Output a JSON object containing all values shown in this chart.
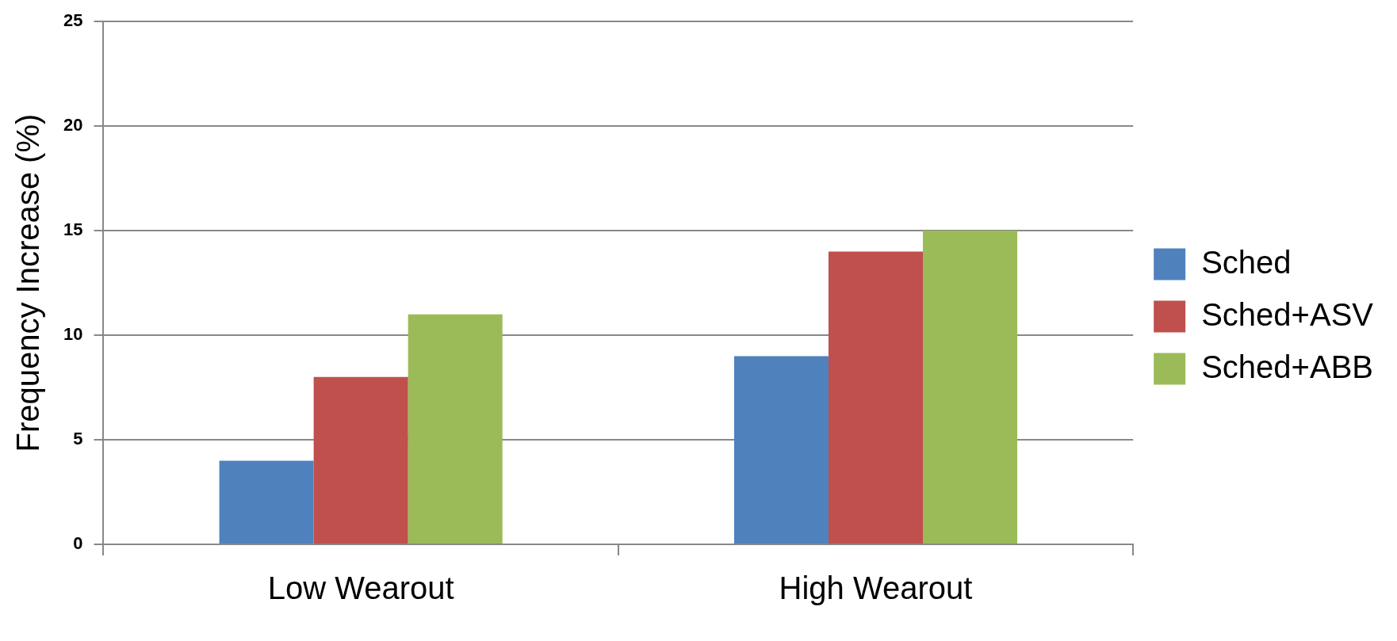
{
  "chart_data": {
    "type": "bar",
    "ylabel": "Frequency Increase (%)",
    "categories": [
      "Low Wearout",
      "High Wearout"
    ],
    "series": [
      {
        "name": "Sched",
        "color": "#4f81bd",
        "values": [
          4,
          9
        ]
      },
      {
        "name": "Sched+ASV",
        "color": "#c0504d",
        "values": [
          8,
          14
        ]
      },
      {
        "name": "Sched+ABB",
        "color": "#9bbb59",
        "values": [
          11,
          15
        ]
      }
    ],
    "ylim": [
      0,
      25
    ],
    "yticks": [
      0,
      5,
      10,
      15,
      20,
      25
    ],
    "grid": "y",
    "legend": "right"
  }
}
